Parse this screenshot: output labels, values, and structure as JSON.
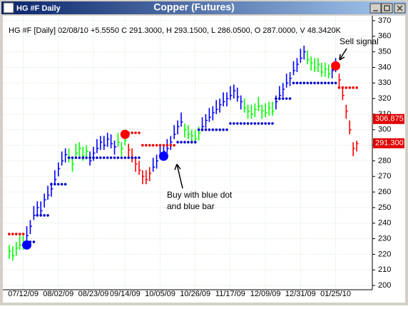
{
  "window_title": "HG #F Daily",
  "chart_data": {
    "type": "ohlc",
    "title": "Copper (Futures)",
    "subtitle": "HG #F [Daily] 02/08/10 +5.5550 C 291.3000, H 293.1500, L 286.0500, O 287.0000, V 48.3420K",
    "ylim": [
      200,
      370
    ],
    "yticks": [
      200,
      210,
      220,
      230,
      240,
      250,
      260,
      270,
      280,
      290,
      300,
      310,
      320,
      330,
      340,
      350,
      360,
      370
    ],
    "xlim": [
      -1,
      100
    ],
    "xticks": [
      {
        "value": 4,
        "label": "07/12/09"
      },
      {
        "value": 14,
        "label": "08/02/09"
      },
      {
        "value": 24,
        "label": "08/23/09"
      },
      {
        "value": 33,
        "label": "09/14/09"
      },
      {
        "value": 43,
        "label": "10/05/09"
      },
      {
        "value": 53,
        "label": "10/26/09"
      },
      {
        "value": 63,
        "label": "11/17/09"
      },
      {
        "value": 73,
        "label": "12/09/09"
      },
      {
        "value": 83,
        "label": "12/31/09"
      },
      {
        "value": 93,
        "label": "01/25/10"
      }
    ],
    "grid": true,
    "high": [
      226,
      225,
      228,
      232,
      232,
      238,
      242,
      251,
      254,
      254,
      259,
      264,
      266,
      274,
      279,
      286,
      288,
      288,
      282,
      291,
      292,
      289,
      290,
      286,
      289,
      294,
      296,
      296,
      298,
      297,
      293,
      298,
      292,
      299,
      291,
      288,
      282,
      280,
      274,
      274,
      276,
      282,
      284,
      290,
      290,
      294,
      296,
      303,
      306,
      311,
      304,
      303,
      300,
      300,
      302,
      308,
      310,
      314,
      315,
      319,
      320,
      324,
      324,
      328,
      329,
      327,
      322,
      320,
      316,
      316,
      317,
      321,
      316,
      317,
      318,
      318,
      322,
      328,
      330,
      336,
      337,
      344,
      346,
      352,
      354,
      351,
      347,
      346,
      346,
      343,
      343,
      342,
      342,
      346,
      336,
      328,
      316,
      306,
      292,
      293
    ],
    "low": [
      217,
      216,
      219,
      223,
      223,
      229,
      233,
      242,
      245,
      245,
      250,
      255,
      257,
      265,
      270,
      277,
      279,
      279,
      273,
      282,
      283,
      280,
      281,
      277,
      280,
      285,
      287,
      287,
      289,
      288,
      284,
      289,
      283,
      290,
      282,
      279,
      273,
      271,
      265,
      265,
      267,
      273,
      275,
      281,
      281,
      285,
      287,
      294,
      297,
      302,
      295,
      294,
      291,
      291,
      293,
      299,
      301,
      305,
      306,
      310,
      311,
      315,
      315,
      319,
      320,
      318,
      313,
      311,
      307,
      307,
      308,
      312,
      307,
      308,
      309,
      309,
      313,
      319,
      321,
      327,
      328,
      335,
      337,
      343,
      345,
      342,
      338,
      337,
      337,
      334,
      334,
      333,
      333,
      337,
      327,
      319,
      307,
      297,
      283,
      286
    ],
    "close": [
      222,
      219,
      224,
      226,
      228,
      232,
      238,
      245,
      250,
      248,
      255,
      258,
      262,
      268,
      275,
      280,
      284,
      282,
      278,
      285,
      288,
      283,
      286,
      280,
      285,
      288,
      292,
      290,
      294,
      291,
      289,
      292,
      288,
      293,
      287,
      282,
      278,
      274,
      270,
      268,
      272,
      276,
      280,
      284,
      286,
      288,
      292,
      297,
      302,
      305,
      300,
      297,
      296,
      294,
      298,
      302,
      306,
      308,
      311,
      313,
      316,
      318,
      320,
      322,
      325,
      321,
      318,
      314,
      312,
      310,
      313,
      315,
      312,
      311,
      314,
      312,
      318,
      322,
      326,
      330,
      333,
      338,
      342,
      346,
      350,
      345,
      343,
      340,
      342,
      337,
      339,
      336,
      338,
      340,
      332,
      322,
      312,
      300,
      288,
      291
    ],
    "bar_colors": [
      "lime",
      "lime",
      "lime",
      "lime",
      "lime",
      "blue",
      "blue",
      "blue",
      "blue",
      "blue",
      "blue",
      "blue",
      "blue",
      "blue",
      "blue",
      "blue",
      "blue",
      "lime",
      "lime",
      "lime",
      "lime",
      "lime",
      "lime",
      "blue",
      "blue",
      "blue",
      "blue",
      "blue",
      "blue",
      "blue",
      "blue",
      "lime",
      "lime",
      "lime",
      "red",
      "red",
      "red",
      "red",
      "red",
      "red",
      "red",
      "blue",
      "blue",
      "blue",
      "blue",
      "blue",
      "blue",
      "blue",
      "blue",
      "blue",
      "lime",
      "lime",
      "lime",
      "lime",
      "lime",
      "blue",
      "blue",
      "blue",
      "blue",
      "blue",
      "blue",
      "blue",
      "blue",
      "blue",
      "blue",
      "blue",
      "blue",
      "lime",
      "lime",
      "lime",
      "lime",
      "lime",
      "lime",
      "lime",
      "lime",
      "lime",
      "blue",
      "blue",
      "blue",
      "blue",
      "blue",
      "blue",
      "blue",
      "blue",
      "blue",
      "lime",
      "lime",
      "lime",
      "lime",
      "lime",
      "lime",
      "lime",
      "blue",
      "blue",
      "red",
      "red",
      "red",
      "red",
      "red",
      "red"
    ],
    "stop_long": {
      "color": "#0000cc",
      "values": [
        null,
        null,
        null,
        null,
        null,
        228,
        228,
        228,
        245,
        245,
        245,
        245,
        265,
        265,
        265,
        265,
        265,
        282,
        282,
        282,
        282,
        282,
        282,
        282,
        282,
        282,
        282,
        282,
        282,
        282,
        282,
        282,
        282,
        282,
        282,
        282,
        282,
        282,
        null,
        null,
        null,
        null,
        null,
        null,
        null,
        null,
        null,
        null,
        292,
        292,
        292,
        292,
        292,
        292,
        300,
        300,
        300,
        300,
        300,
        300,
        300,
        300,
        300,
        304,
        304,
        304,
        304,
        304,
        304,
        304,
        304,
        304,
        304,
        304,
        304,
        304,
        320,
        320,
        320,
        320,
        320,
        330,
        330,
        330,
        330,
        330,
        330,
        330,
        330,
        330,
        330,
        330,
        330,
        330,
        null,
        null,
        null,
        null,
        null,
        null
      ]
    },
    "stop_short": {
      "color": "#ee0000",
      "values": [
        233,
        233,
        233,
        233,
        233,
        null,
        null,
        null,
        null,
        null,
        null,
        null,
        null,
        null,
        null,
        null,
        null,
        null,
        null,
        null,
        null,
        null,
        null,
        null,
        null,
        null,
        null,
        null,
        null,
        null,
        null,
        null,
        null,
        298,
        298,
        298,
        298,
        298,
        290,
        290,
        290,
        290,
        290,
        290,
        290,
        290,
        290,
        290,
        null,
        null,
        null,
        null,
        null,
        null,
        null,
        null,
        null,
        null,
        null,
        null,
        null,
        null,
        null,
        null,
        null,
        null,
        null,
        null,
        null,
        null,
        null,
        null,
        null,
        null,
        null,
        null,
        null,
        null,
        null,
        null,
        null,
        null,
        null,
        null,
        null,
        null,
        null,
        null,
        null,
        null,
        null,
        null,
        null,
        null,
        327,
        327,
        327,
        327,
        327,
        327
      ]
    },
    "signals": [
      {
        "x": 5,
        "value": 226,
        "color": "#0000ff"
      },
      {
        "x": 33,
        "value": 297,
        "color": "#ff0000"
      },
      {
        "x": 44,
        "value": 283,
        "color": "#0000ff"
      },
      {
        "x": 93,
        "value": 341,
        "color": "#ff0000"
      }
    ],
    "price_labels": [
      {
        "value": 306.875,
        "label": "306.875"
      },
      {
        "value": 291.3,
        "label": "291.300"
      }
    ],
    "annotations": {
      "sell": "Sell signal",
      "buy": [
        "Buy with blue dot",
        "and blue bar"
      ]
    }
  }
}
